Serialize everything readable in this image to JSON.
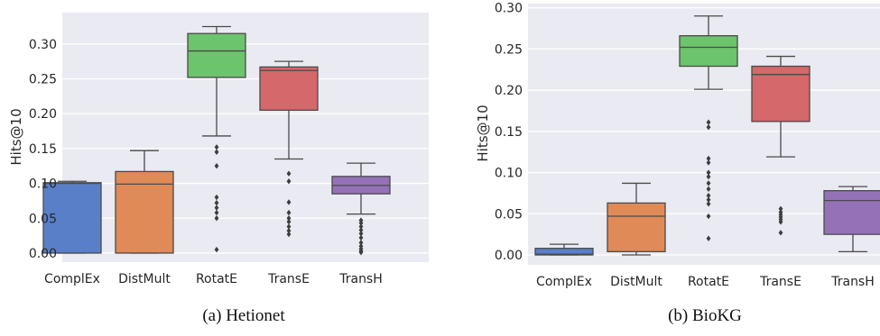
{
  "colors": {
    "panel_bg": "#EAEAF2",
    "grid": "#FFFFFF",
    "whisker": "#4a4a4a",
    "boxes": [
      "#4C72B0",
      "#DD8452",
      "#55A868",
      "#C44E52",
      "#8172B3"
    ],
    "box_fills": [
      "#5a7fc9",
      "#e08a58",
      "#6cc46c",
      "#d4686a",
      "#9572b8"
    ]
  },
  "chart_data": [
    {
      "type": "box",
      "caption": "(a) Hetionet",
      "ylabel": "Hits@10",
      "ylim": [
        -0.013,
        0.345
      ],
      "yticks": [
        "0.00",
        "0.05",
        "0.10",
        "0.15",
        "0.20",
        "0.25",
        "0.30"
      ],
      "grid": true,
      "categories": [
        "ComplEx",
        "DistMult",
        "RotatE",
        "TransE",
        "TransH"
      ],
      "boxes": [
        {
          "category": "ComplEx",
          "whislo": 0.0,
          "q1": 0.0,
          "med": 0.1,
          "q3": 0.101,
          "whishi": 0.103,
          "fliers": []
        },
        {
          "category": "DistMult",
          "whislo": 0.0,
          "q1": 0.0,
          "med": 0.099,
          "q3": 0.117,
          "whishi": 0.147,
          "fliers": []
        },
        {
          "category": "RotatE",
          "whislo": 0.168,
          "q1": 0.252,
          "med": 0.29,
          "q3": 0.315,
          "whishi": 0.325,
          "fliers": [
            0.152,
            0.145,
            0.125,
            0.08,
            0.072,
            0.065,
            0.058,
            0.05,
            0.005
          ]
        },
        {
          "category": "TransE",
          "whislo": 0.135,
          "q1": 0.205,
          "med": 0.262,
          "q3": 0.267,
          "whishi": 0.275,
          "fliers": [
            0.114,
            0.103,
            0.073,
            0.058,
            0.05,
            0.045,
            0.038,
            0.032,
            0.027
          ]
        },
        {
          "category": "TransH",
          "whislo": 0.056,
          "q1": 0.085,
          "med": 0.097,
          "q3": 0.11,
          "whishi": 0.129,
          "fliers": [
            0.047,
            0.043,
            0.038,
            0.033,
            0.028,
            0.022,
            0.015,
            0.01,
            0.006,
            0.003,
            0.001
          ]
        }
      ]
    },
    {
      "type": "box",
      "caption": "(b) BioKG",
      "ylabel": "Hits@10",
      "ylim": [
        -0.012,
        0.305
      ],
      "yticks": [
        "0.00",
        "0.05",
        "0.10",
        "0.15",
        "0.20",
        "0.25",
        "0.30"
      ],
      "grid": true,
      "categories": [
        "ComplEx",
        "DistMult",
        "RotatE",
        "TransE",
        "TransH"
      ],
      "boxes": [
        {
          "category": "ComplEx",
          "whislo": 0.0,
          "q1": 0.0,
          "med": 0.001,
          "q3": 0.008,
          "whishi": 0.013,
          "fliers": []
        },
        {
          "category": "DistMult",
          "whislo": 0.0,
          "q1": 0.004,
          "med": 0.047,
          "q3": 0.063,
          "whishi": 0.087,
          "fliers": []
        },
        {
          "category": "RotatE",
          "whislo": 0.201,
          "q1": 0.229,
          "med": 0.252,
          "q3": 0.266,
          "whishi": 0.29,
          "fliers": [
            0.161,
            0.155,
            0.117,
            0.112,
            0.1,
            0.095,
            0.087,
            0.08,
            0.072,
            0.067,
            0.062,
            0.047,
            0.02
          ]
        },
        {
          "category": "TransE",
          "whislo": 0.119,
          "q1": 0.162,
          "med": 0.219,
          "q3": 0.229,
          "whishi": 0.241,
          "fliers": [
            0.056,
            0.052,
            0.049,
            0.046,
            0.043,
            0.04,
            0.027
          ]
        },
        {
          "category": "TransH",
          "whislo": 0.004,
          "q1": 0.025,
          "med": 0.066,
          "q3": 0.078,
          "whishi": 0.083,
          "fliers": []
        }
      ]
    }
  ]
}
